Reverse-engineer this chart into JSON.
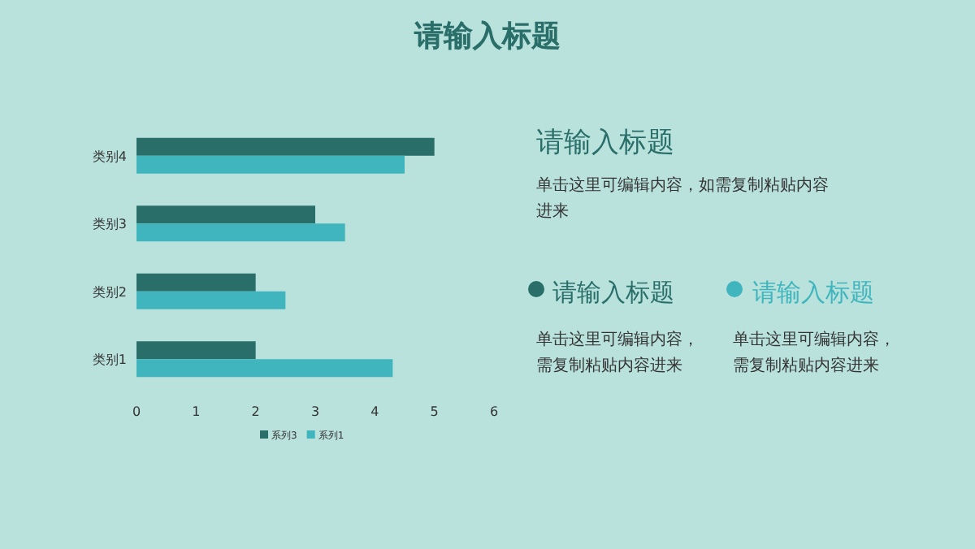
{
  "chart_data": {
    "type": "bar",
    "orientation": "horizontal",
    "title": "请输入标题",
    "categories": [
      "类别4",
      "类别3",
      "类别2",
      "类别1"
    ],
    "series": [
      {
        "name": "系列3",
        "color": "#2a6e69",
        "values": [
          5,
          3,
          2,
          2
        ]
      },
      {
        "name": "系列1",
        "color": "#40b5bd",
        "values": [
          4.5,
          3.5,
          2.5,
          4.3
        ]
      }
    ],
    "xlim": [
      0,
      6
    ],
    "xticks": [
      0,
      1,
      2,
      3,
      4,
      5,
      6
    ],
    "grid": false,
    "legend": "bottom",
    "annotations": [
      "请输入标题",
      "单击这里可编辑内容，如需复制粘贴内容进来",
      "请输入标题",
      "单击这里可编辑内容，需复制粘贴内容进来",
      "请输入标题",
      "单击这里可编辑内容，需复制粘贴内容进来"
    ]
  }
}
